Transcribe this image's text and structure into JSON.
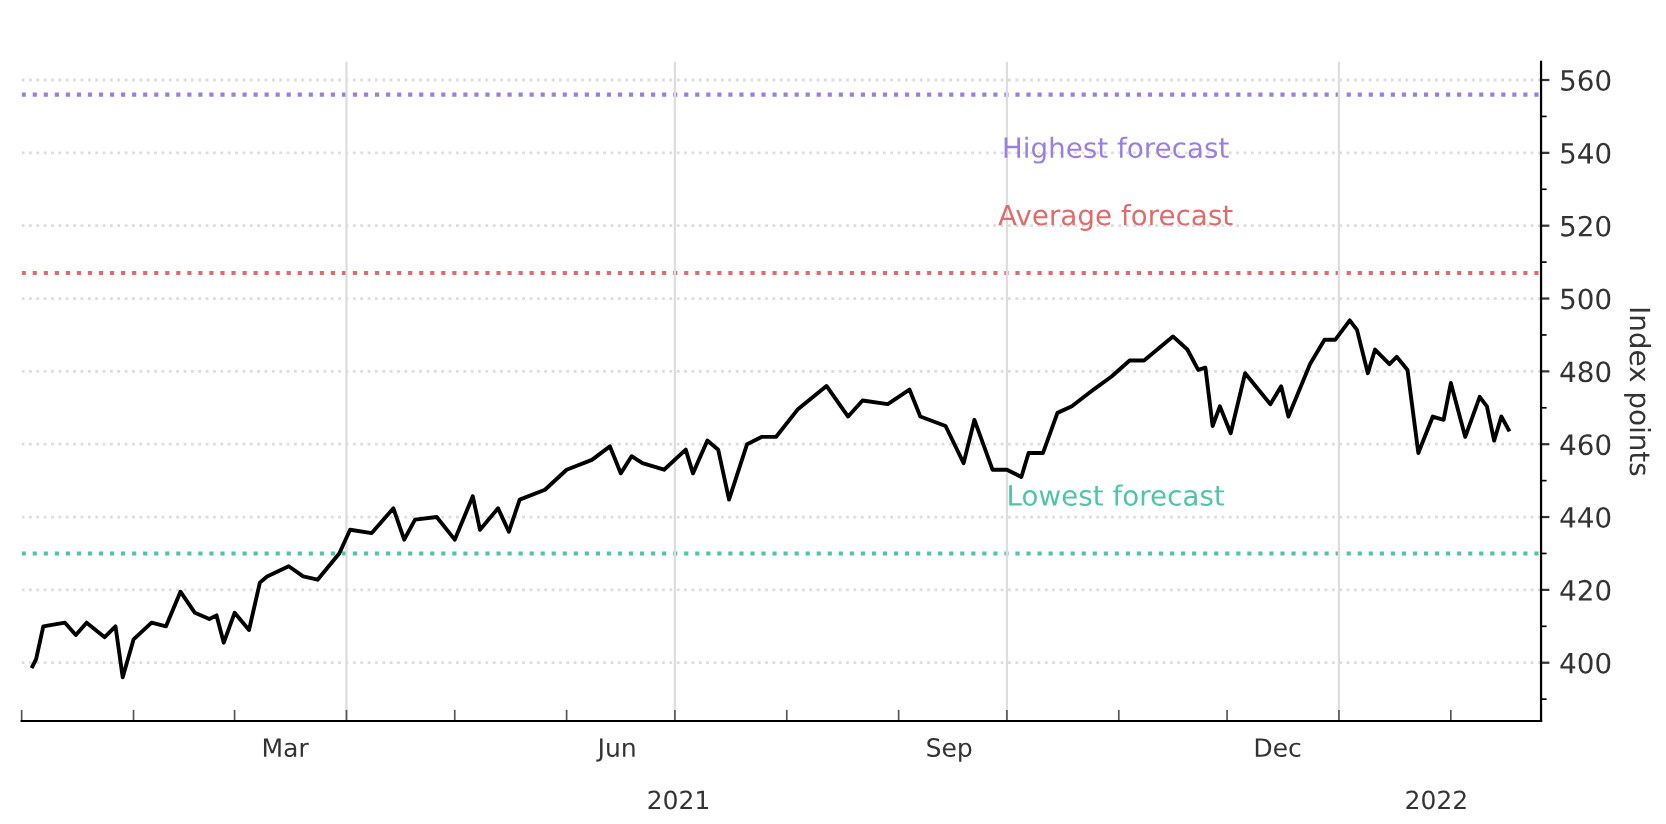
{
  "chart_data": {
    "type": "line",
    "ylabel": "Index points",
    "x": [
      "2021-01-04",
      "2021-01-05",
      "2021-01-07",
      "2021-01-13",
      "2021-01-16",
      "2021-01-19",
      "2021-01-24",
      "2021-01-27",
      "2021-01-29",
      "2021-02-01",
      "2021-02-06",
      "2021-02-10",
      "2021-02-14",
      "2021-02-18",
      "2021-02-22",
      "2021-02-24",
      "2021-02-26",
      "2021-03-01",
      "2021-03-05",
      "2021-03-08",
      "2021-03-10",
      "2021-03-16",
      "2021-03-20",
      "2021-03-24",
      "2021-03-30",
      "2021-04-02",
      "2021-04-08",
      "2021-04-14",
      "2021-04-17",
      "2021-04-20",
      "2021-04-26",
      "2021-05-01",
      "2021-05-06",
      "2021-05-08",
      "2021-05-13",
      "2021-05-16",
      "2021-05-19",
      "2021-05-26",
      "2021-06-01",
      "2021-06-08",
      "2021-06-13",
      "2021-06-16",
      "2021-06-19",
      "2021-06-22",
      "2021-06-28",
      "2021-07-04",
      "2021-07-06",
      "2021-07-10",
      "2021-07-13",
      "2021-07-16",
      "2021-07-21",
      "2021-07-25",
      "2021-07-29",
      "2021-08-04",
      "2021-08-12",
      "2021-08-18",
      "2021-08-22",
      "2021-08-29",
      "2021-09-04",
      "2021-09-07",
      "2021-09-14",
      "2021-09-19",
      "2021-09-22",
      "2021-09-27",
      "2021-10-01",
      "2021-10-05",
      "2021-10-07",
      "2021-10-11",
      "2021-10-15",
      "2021-10-19",
      "2021-10-25",
      "2021-10-30",
      "2021-11-04",
      "2021-11-08",
      "2021-11-16",
      "2021-11-20",
      "2021-11-23",
      "2021-11-25",
      "2021-11-27",
      "2021-11-29",
      "2021-12-02",
      "2021-12-06",
      "2021-12-13",
      "2021-12-16",
      "2021-12-18",
      "2021-12-24",
      "2021-12-28",
      "2021-12-31",
      "2022-01-04",
      "2022-01-06",
      "2022-01-09",
      "2022-01-11",
      "2022-01-15",
      "2022-01-17",
      "2022-01-20",
      "2022-01-23",
      "2022-01-27",
      "2022-01-30",
      "2022-02-01",
      "2022-02-05",
      "2022-02-09",
      "2022-02-11",
      "2022-02-13",
      "2022-02-15",
      "2022-02-17"
    ],
    "series": [
      {
        "color": "#000000",
        "values": [
          399,
          401,
          410,
          411,
          407.6,
          411,
          407,
          410,
          396,
          406.4,
          411,
          410,
          419.5,
          413.7,
          412,
          413,
          405.5,
          413.7,
          409,
          422,
          423.7,
          426.5,
          423.7,
          422.8,
          430,
          436.5,
          435.6,
          442.4,
          433.8,
          439.3,
          440,
          433.8,
          445.7,
          436.5,
          442.4,
          436,
          444.8,
          447.5,
          453,
          455.7,
          459.4,
          452,
          456.7,
          454.8,
          453,
          458.5,
          452,
          461,
          458.5,
          444.8,
          460,
          462,
          462,
          469.5,
          476,
          467.6,
          472,
          471,
          475,
          467.6,
          465,
          454.8,
          466.7,
          453,
          453,
          451,
          457.6,
          457.6,
          468.6,
          470.4,
          475,
          478.6,
          483,
          483,
          489.6,
          486,
          480.4,
          481,
          465,
          470.4,
          463,
          479.5,
          471,
          475.9,
          467.6,
          482,
          488.7,
          488.7,
          494,
          491.4,
          479.5,
          486,
          482,
          484,
          480.4,
          457.6,
          467.6,
          466.7,
          476.8,
          462,
          473,
          470.4,
          461,
          467.6,
          464
        ]
      }
    ],
    "xlim": [
      "2021-01-01",
      "2022-02-26"
    ],
    "xticks": [
      {
        "value": "2021-01-01",
        "label": null
      },
      {
        "value": "2021-02-01",
        "label": null
      },
      {
        "value": "2021-03-01",
        "label": null
      },
      {
        "value": "2021-03-15",
        "label": "Mar"
      },
      {
        "value": "2021-04-01",
        "label": null
      },
      {
        "value": "2021-05-01",
        "label": null
      },
      {
        "value": "2021-06-01",
        "label": null
      },
      {
        "value": "2021-06-15",
        "label": "Jun"
      },
      {
        "value": "2021-07-01",
        "label": null
      },
      {
        "value": "2021-08-01",
        "label": null
      },
      {
        "value": "2021-09-01",
        "label": null
      },
      {
        "value": "2021-09-15",
        "label": "Sep"
      },
      {
        "value": "2021-10-01",
        "label": null
      },
      {
        "value": "2021-11-01",
        "label": null
      },
      {
        "value": "2021-12-01",
        "label": null
      },
      {
        "value": "2021-12-15",
        "label": "Dec"
      },
      {
        "value": "2022-01-01",
        "label": null
      },
      {
        "value": "2022-02-01",
        "label": null
      }
    ],
    "x2lim": [
      "2021-01-01",
      "2022-02-26"
    ],
    "x2ticks": [
      {
        "value": "2021-07-02",
        "label": "2021"
      },
      {
        "value": "2022-01-28",
        "label": "2022"
      }
    ],
    "ylim": [
      384,
      565
    ],
    "yticks": [
      {
        "value": 390,
        "label": null
      },
      400,
      {
        "value": 410,
        "label": null
      },
      420,
      {
        "value": 430,
        "label": null
      },
      440,
      {
        "value": 450,
        "label": null
      },
      460,
      {
        "value": 470,
        "label": null
      },
      480,
      {
        "value": 490,
        "label": null
      },
      500,
      {
        "value": 510,
        "label": null
      },
      520,
      {
        "value": 530,
        "label": null
      },
      540,
      {
        "value": 550,
        "label": null
      },
      560
    ],
    "grid": "y",
    "line_style": "solid",
    "ref_lines": [
      {
        "axis": "y",
        "value": 556,
        "color": "#9b7fe0",
        "line_style": "dotted",
        "label": "Highest forecast"
      },
      {
        "axis": "y",
        "value": 507,
        "color": "#e06b6b",
        "line_style": "dotted",
        "label": "Average forecast"
      },
      {
        "axis": "y",
        "value": 430,
        "color": "#4fc4a8",
        "line_style": "dotted",
        "label": "Lowest forecast"
      },
      {
        "axis": "x",
        "value": "2021-04-01",
        "color": "#dddddd",
        "line_style": "solid"
      },
      {
        "axis": "x",
        "value": "2021-07-01",
        "color": "#dddddd",
        "line_style": "solid"
      },
      {
        "axis": "x",
        "value": "2021-10-01",
        "color": "#dddddd",
        "line_style": "solid"
      },
      {
        "axis": "x",
        "value": "2022-01-01",
        "color": "#dddddd",
        "line_style": "solid"
      }
    ]
  }
}
